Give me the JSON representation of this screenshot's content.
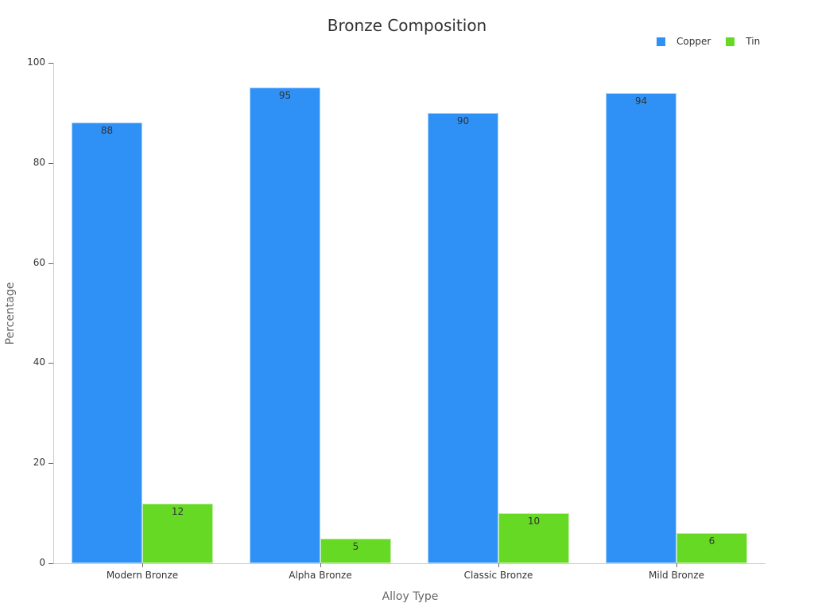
{
  "chart_data": {
    "type": "bar",
    "title": "Bronze Composition",
    "xlabel": "Alloy Type",
    "ylabel": "Percentage",
    "ylim": [
      0,
      100
    ],
    "yticks": [
      0,
      20,
      40,
      60,
      80,
      100
    ],
    "grid": false,
    "legend_position": "top-right",
    "categories": [
      "Modern Bronze",
      "Alpha Bronze",
      "Classic Bronze",
      "Mild Bronze"
    ],
    "series": [
      {
        "name": "Copper",
        "color": "#2f91f5",
        "values": [
          88,
          95,
          90,
          94
        ]
      },
      {
        "name": "Tin",
        "color": "#66d925",
        "values": [
          12,
          5,
          10,
          6
        ]
      }
    ]
  }
}
